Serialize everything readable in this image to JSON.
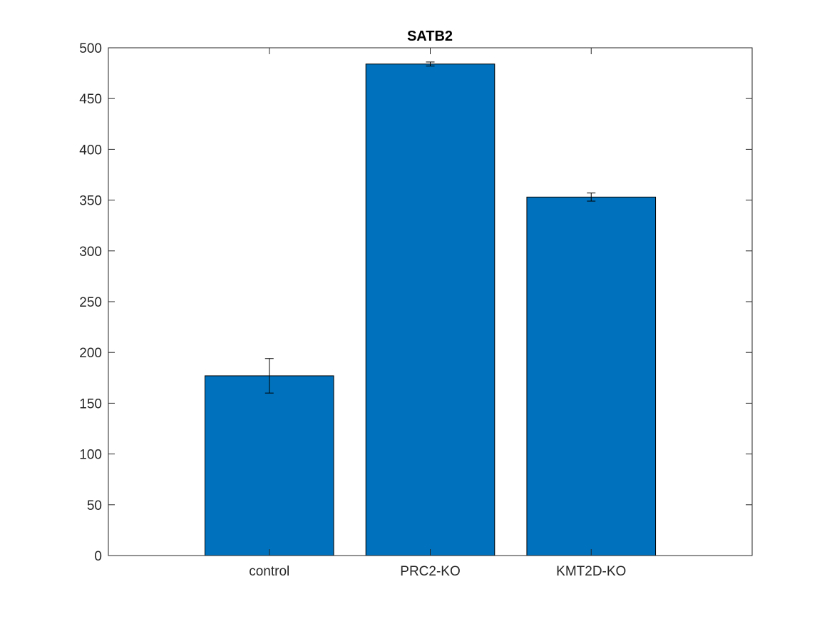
{
  "chart_data": {
    "type": "bar",
    "title": "SATB2",
    "xlabel": "",
    "ylabel": "",
    "categories": [
      "control",
      "PRC2-KO",
      "KMT2D-KO"
    ],
    "values": [
      177,
      484,
      353
    ],
    "error": {
      "lower": [
        160,
        482,
        349
      ],
      "upper": [
        194,
        486,
        357
      ]
    },
    "ylim": [
      0,
      500
    ],
    "yticks": [
      0,
      50,
      100,
      150,
      200,
      250,
      300,
      350,
      400,
      450,
      500
    ],
    "grid": false,
    "legend": "none",
    "colors": {
      "bar": "#0072bd",
      "bar_edge": "#000000",
      "axis": "#262626",
      "error_bar": "#000000"
    }
  }
}
